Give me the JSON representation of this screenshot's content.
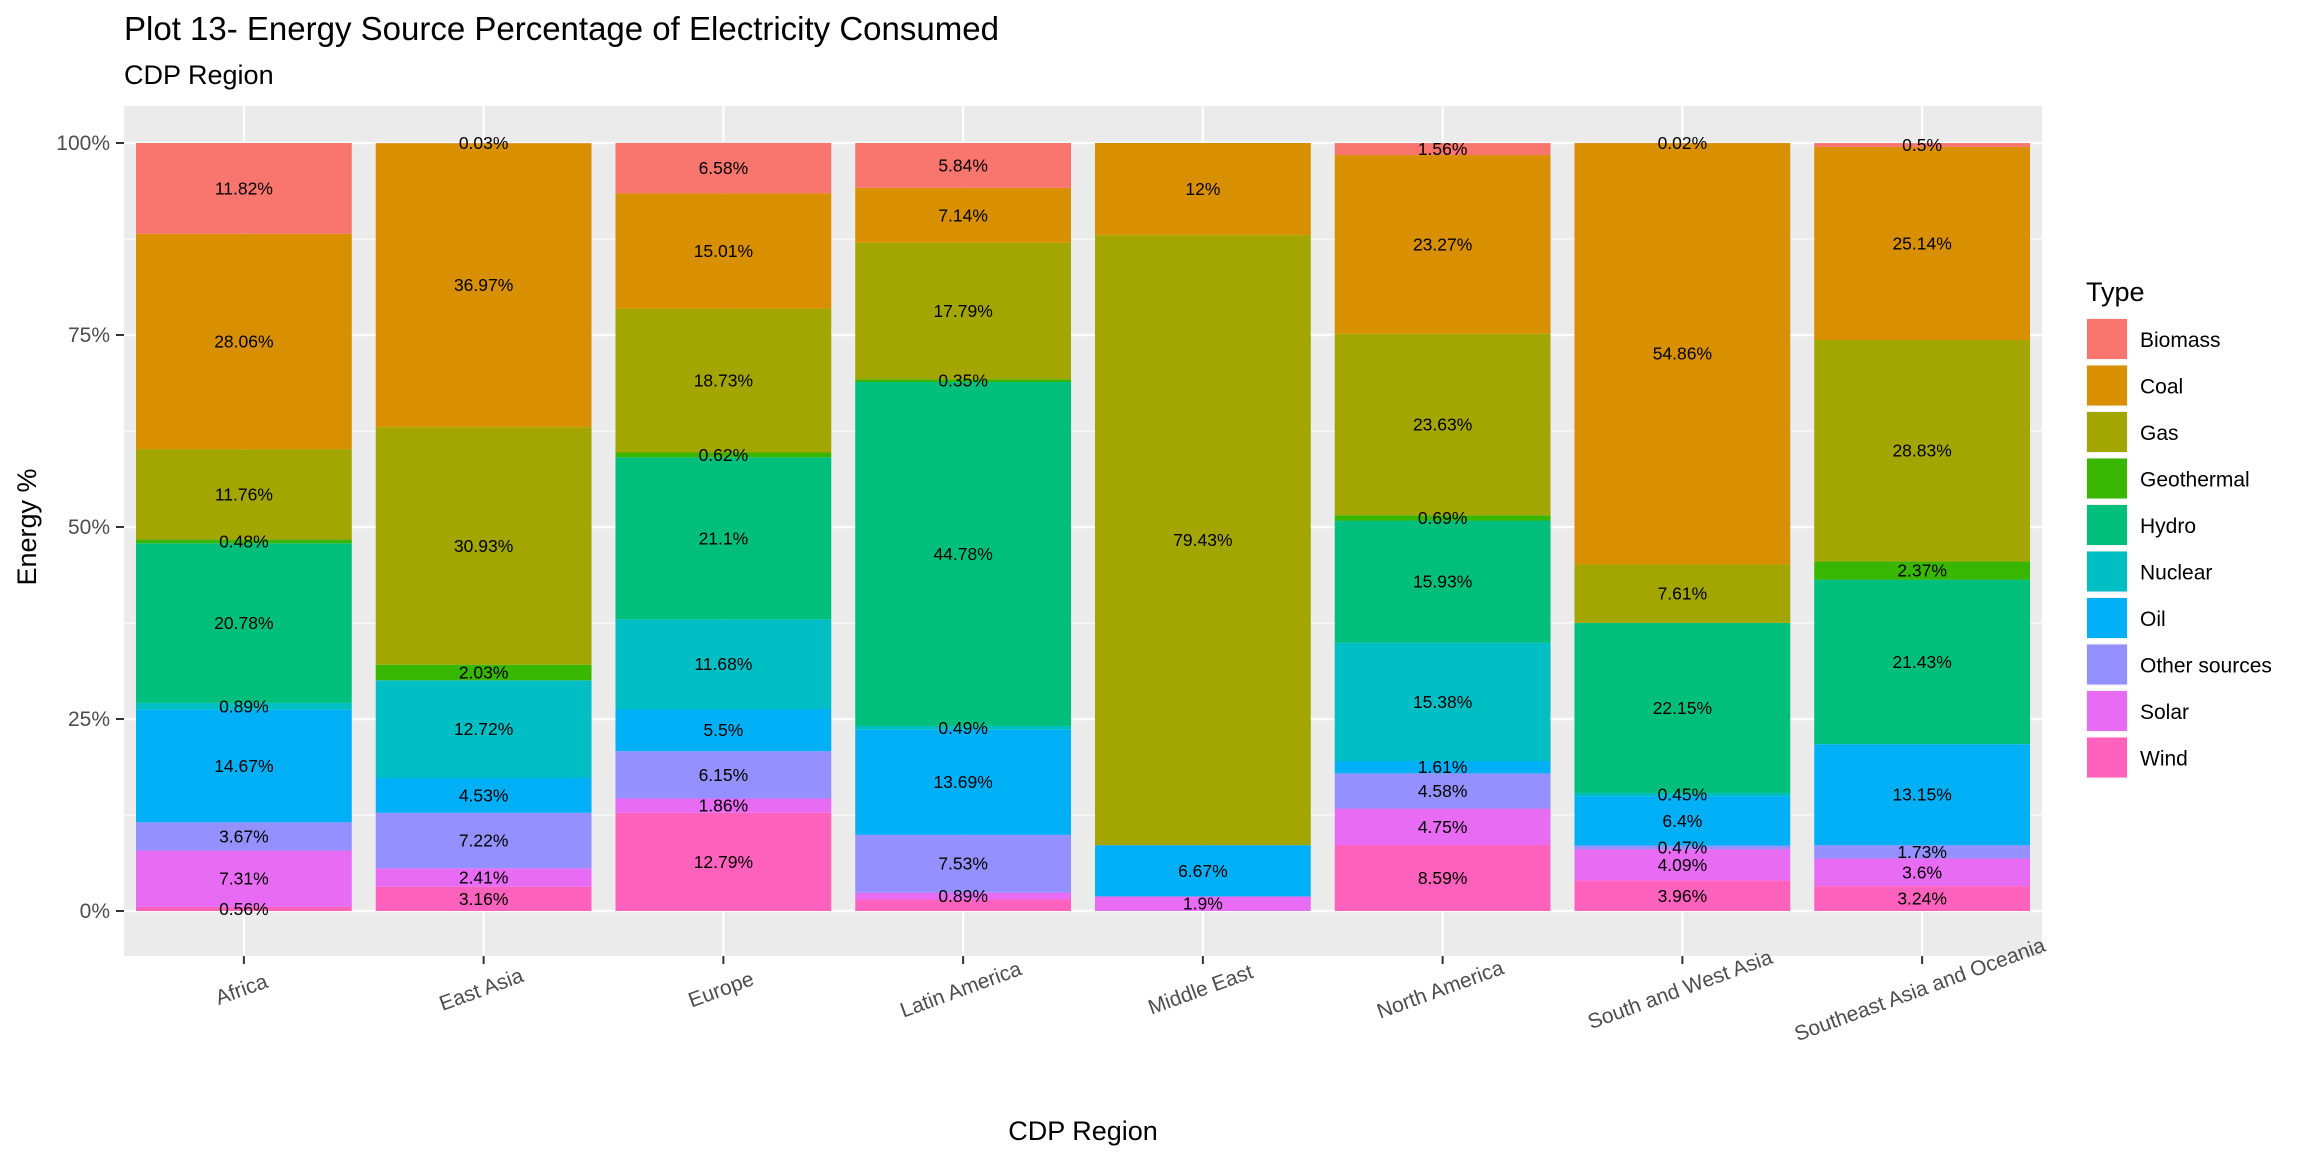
{
  "chart_data": {
    "type": "bar",
    "stacked": true,
    "title": "Plot 13- Energy Source Percentage of Electricity Consumed",
    "subtitle": "CDP Region",
    "xlabel": "CDP Region",
    "ylabel": "Energy %",
    "ylim": [
      0,
      100
    ],
    "y_ticks": [
      "0%",
      "25%",
      "50%",
      "75%",
      "100%"
    ],
    "y_tick_values": [
      0,
      25,
      50,
      75,
      100
    ],
    "legend_title": "Type",
    "legend_position": "right",
    "categories": [
      "Africa",
      "East Asia",
      "Europe",
      "Latin America",
      "Middle East",
      "North America",
      "South and West Asia",
      "Southeast Asia and Oceania"
    ],
    "series": [
      {
        "name": "Biomass",
        "color": "#F8766D",
        "values": [
          11.82,
          0.03,
          6.58,
          5.84,
          0,
          1.56,
          0.02,
          0.5
        ],
        "labels": [
          "11.82%",
          "0.03%",
          "6.58%",
          "5.84%",
          "",
          "1.56%",
          "0.02%",
          "0.5%"
        ]
      },
      {
        "name": "Coal",
        "color": "#D89000",
        "values": [
          28.06,
          36.97,
          15.01,
          7.14,
          12,
          23.27,
          54.86,
          25.14
        ],
        "labels": [
          "28.06%",
          "36.97%",
          "15.01%",
          "7.14%",
          "12%",
          "23.27%",
          "54.86%",
          "25.14%"
        ]
      },
      {
        "name": "Gas",
        "color": "#A3A500",
        "values": [
          11.76,
          30.93,
          18.73,
          17.79,
          79.43,
          23.63,
          7.61,
          28.83
        ],
        "labels": [
          "11.76%",
          "30.93%",
          "18.73%",
          "17.79%",
          "79.43%",
          "23.63%",
          "7.61%",
          "28.83%"
        ]
      },
      {
        "name": "Geothermal",
        "color": "#39B600",
        "values": [
          0.48,
          2.03,
          0.62,
          0.35,
          0,
          0.69,
          0,
          2.37
        ],
        "labels": [
          "0.48%",
          "2.03%",
          "0.62%",
          "0.35%",
          "",
          "0.69%",
          "",
          "2.37%"
        ]
      },
      {
        "name": "Hydro",
        "color": "#00BF7D",
        "values": [
          20.78,
          0,
          21.1,
          44.78,
          0,
          15.93,
          22.15,
          21.43
        ],
        "labels": [
          "20.78%",
          "",
          "21.1%",
          "44.78%",
          "",
          "15.93%",
          "22.15%",
          "21.43%"
        ]
      },
      {
        "name": "Nuclear",
        "color": "#00BFC4",
        "values": [
          0.89,
          12.72,
          11.68,
          0.49,
          0,
          15.38,
          0.45,
          0
        ],
        "labels": [
          "0.89%",
          "12.72%",
          "11.68%",
          "0.49%",
          "",
          "15.38%",
          "0.45%",
          ""
        ]
      },
      {
        "name": "Oil",
        "color": "#00B0F6",
        "values": [
          14.67,
          4.53,
          5.5,
          13.69,
          6.67,
          1.61,
          6.4,
          13.15
        ],
        "labels": [
          "14.67%",
          "4.53%",
          "5.5%",
          "13.69%",
          "6.67%",
          "1.61%",
          "6.4%",
          "13.15%"
        ]
      },
      {
        "name": "Other sources",
        "color": "#9590FF",
        "values": [
          3.67,
          7.22,
          6.15,
          7.53,
          0,
          4.58,
          0.47,
          1.73
        ],
        "labels": [
          "3.67%",
          "7.22%",
          "6.15%",
          "7.53%",
          "",
          "4.58%",
          "0.47%",
          "1.73%"
        ]
      },
      {
        "name": "Solar",
        "color": "#E76BF3",
        "values": [
          7.31,
          2.41,
          1.86,
          0.89,
          1.9,
          4.75,
          4.09,
          3.6
        ],
        "labels": [
          "7.31%",
          "2.41%",
          "1.86%",
          "0.89%",
          "1.9%",
          "4.75%",
          "4.09%",
          "3.6%"
        ]
      },
      {
        "name": "Wind",
        "color": "#FF62BC",
        "values": [
          0.56,
          3.16,
          12.79,
          1.5,
          0,
          8.59,
          3.96,
          3.24
        ],
        "labels": [
          "0.56%",
          "3.16%",
          "12.79%",
          "",
          "",
          "8.59%",
          "3.96%",
          "3.24%"
        ]
      }
    ]
  }
}
